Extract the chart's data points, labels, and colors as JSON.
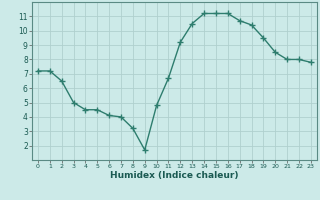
{
  "x": [
    0,
    1,
    2,
    3,
    4,
    5,
    6,
    7,
    8,
    9,
    10,
    11,
    12,
    13,
    14,
    15,
    16,
    17,
    18,
    19,
    20,
    21,
    22,
    23
  ],
  "y": [
    7.2,
    7.2,
    6.5,
    5.0,
    4.5,
    4.5,
    4.1,
    4.0,
    3.2,
    1.7,
    4.8,
    6.7,
    9.2,
    10.5,
    11.2,
    11.2,
    11.2,
    10.7,
    10.4,
    9.5,
    8.5,
    8.0,
    8.0,
    7.8
  ],
  "line_color": "#2e7d6e",
  "marker": "+",
  "marker_size": 4,
  "linewidth": 1.0,
  "bg_color": "#cceae8",
  "grid_color": "#b0d0ce",
  "xlabel": "Humidex (Indice chaleur)",
  "xlim": [
    -0.5,
    23.5
  ],
  "ylim": [
    1.0,
    12.0
  ],
  "yticks": [
    2,
    3,
    4,
    5,
    6,
    7,
    8,
    9,
    10,
    11
  ],
  "xticks": [
    0,
    1,
    2,
    3,
    4,
    5,
    6,
    7,
    8,
    9,
    10,
    11,
    12,
    13,
    14,
    15,
    16,
    17,
    18,
    19,
    20,
    21,
    22,
    23
  ],
  "tick_label_color": "#1a5a52",
  "xlabel_color": "#1a5a52"
}
